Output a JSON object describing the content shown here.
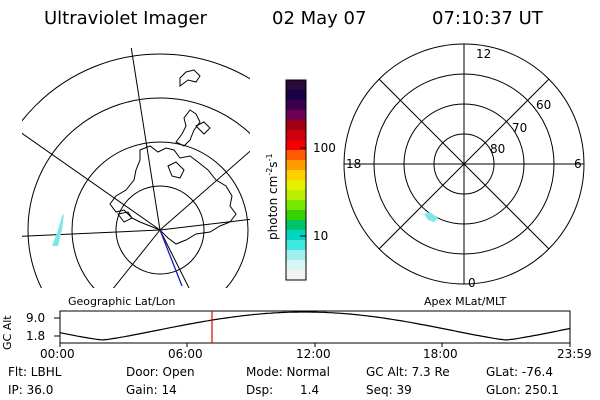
{
  "header": {
    "title": "Ultraviolet Imager",
    "date": "02 May 07",
    "time": "07:10:37 UT"
  },
  "colorbar": {
    "unit": "photon cm",
    "unit_exp1": "-2",
    "unit_mid": "s",
    "unit_exp2": "-1",
    "ticks": [
      "100",
      "10"
    ],
    "colors": [
      "#2a0a3a",
      "#1a0046",
      "#3b004d",
      "#6e0052",
      "#a00016",
      "#cd0010",
      "#f20000",
      "#ff5a00",
      "#ff9a00",
      "#ffd000",
      "#e8f000",
      "#b8f000",
      "#78e800",
      "#35d400",
      "#00c46a",
      "#00d6c0",
      "#40e8e0",
      "#a0f0f0",
      "#d8f4f4",
      "#f2f2f2"
    ]
  },
  "left_panel": {
    "caption": "Geographic Lat/Lon"
  },
  "right_panel": {
    "caption": "Apex MLat/MLT",
    "mlt_labels": {
      "top": "12",
      "left": "18",
      "right": "6",
      "bottom": "0"
    },
    "lat_labels": [
      "60",
      "70",
      "80"
    ]
  },
  "timeline": {
    "ylabel": "GC Alt",
    "yticks": [
      "9.0",
      "1.8"
    ],
    "xticks": [
      "00:00",
      "06:00",
      "12:00",
      "18:00",
      "23:59"
    ],
    "marker_color": "#e00000"
  },
  "footer": {
    "flt": "Flt: LBHL",
    "door": "Door: Open",
    "mode": "Mode: Normal",
    "gc_alt": "GC Alt: 7.3 Re",
    "glat": "GLat: -76.4",
    "ip": "IP: 36.0",
    "gain": "Gain: 14",
    "dsp_label": "Dsp:",
    "dsp_value": "1.4",
    "seq": "Seq: 39",
    "glon": "GLon: 250.1"
  }
}
